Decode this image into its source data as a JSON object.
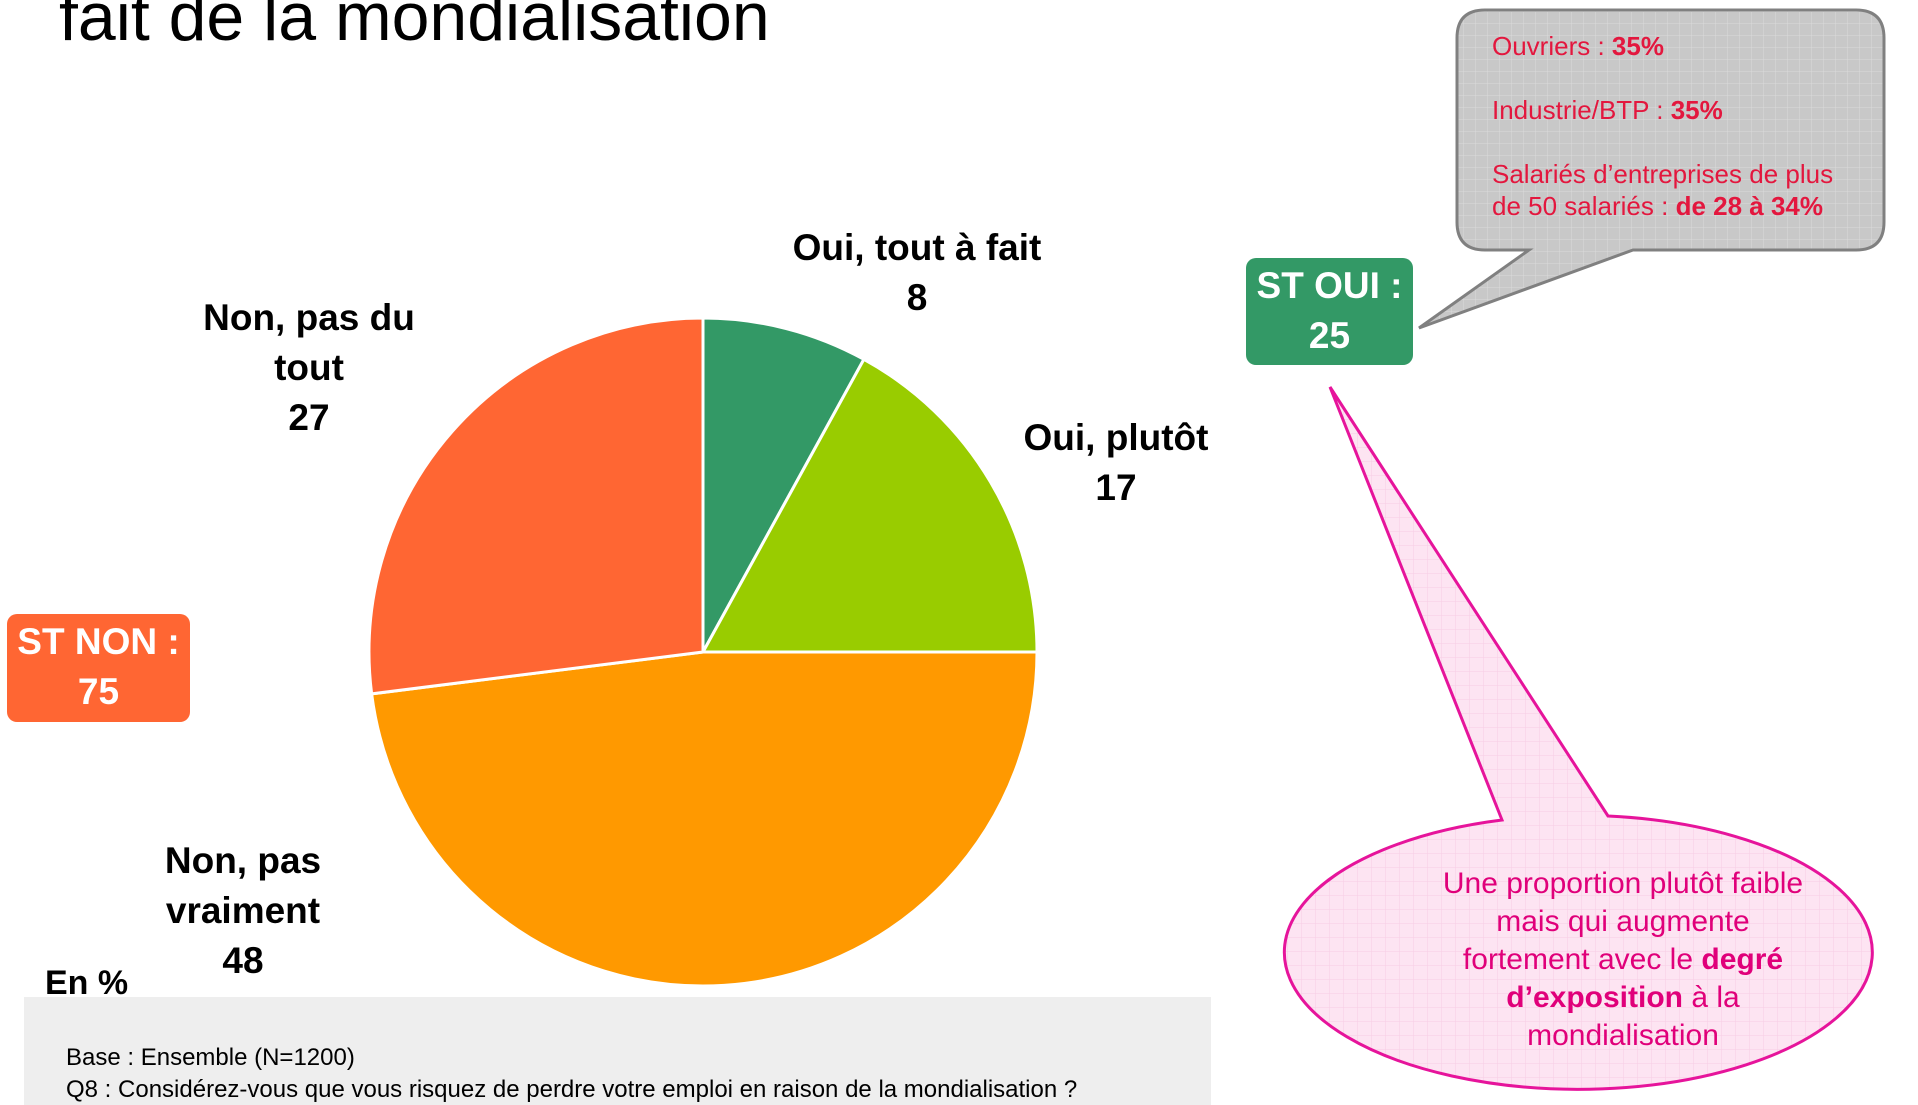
{
  "title": "fait de la mondialisation",
  "chart_data": {
    "type": "pie",
    "categories": [
      "Oui, tout à fait",
      "Oui, plutôt",
      "Non, pas vraiment",
      "Non, pas du tout"
    ],
    "values": [
      8,
      17,
      48,
      27
    ],
    "colors": [
      "#339966",
      "#99cc00",
      "#ff9900",
      "#ff6633"
    ]
  },
  "subtotals": [
    {
      "label": "ST OUI :",
      "value": 25,
      "color": "#339966"
    },
    {
      "label": "ST NON :",
      "value": 75,
      "color": "#ff6633"
    }
  ],
  "unit_note": "En %",
  "callout": {
    "items": [
      [
        {
          "text": "Ouvriers : "
        },
        {
          "text": "35%",
          "bold": true
        }
      ],
      [
        {
          "text": "Industrie/BTP : "
        },
        {
          "text": "35%",
          "bold": true
        }
      ],
      [
        {
          "text": "Salariés d’entreprises de plus de 50 salariés : "
        },
        {
          "text": "de 28 à 34%",
          "bold": true
        }
      ]
    ]
  },
  "comment": {
    "parts": [
      {
        "text": "Une proportion plutôt faible mais qui augmente fortement avec le "
      },
      {
        "text": "degré d’exposition",
        "bold": true
      },
      {
        "text": " à la mondialisation"
      }
    ]
  },
  "footer": {
    "base": "Base : Ensemble (N=1200)",
    "question": "Q8 : Considérez-vous que vous risquez de perdre votre emploi en raison de la mondialisation ?"
  }
}
